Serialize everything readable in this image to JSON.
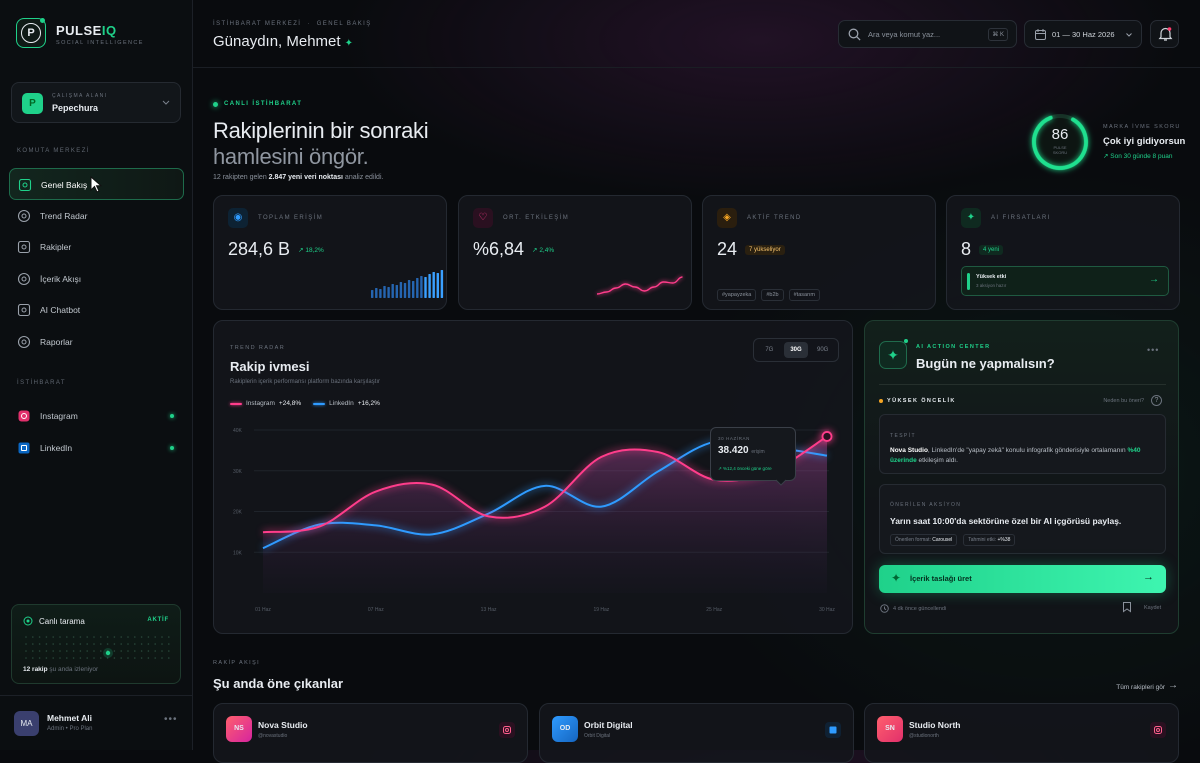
{
  "sidebar": {
    "brand": {
      "logo": "P",
      "name": "PULSE",
      "name_accent": "IQ",
      "tagline": "SOCIAL INTELLIGENCE"
    },
    "workspace": {
      "avatar": "P",
      "label": "ÇALIŞMA ALANI",
      "name": "Pepechura"
    },
    "sections": [
      {
        "title": "KOMUTA MERKEZİ",
        "items": [
          "Genel Bakış",
          "Trend Radar",
          "Rakipler",
          "İçerik Akışı",
          "AI Chatbot",
          "Raporlar"
        ]
      },
      {
        "title": "İSTİHBARAT",
        "items": [
          "Instagram",
          "LinkedIn"
        ]
      }
    ],
    "live_scan": {
      "title": "Canlı tarama",
      "status": "AKTİF",
      "count": "12 rakip",
      "caption": " şu anda izleniyor"
    },
    "user": {
      "initials": "MA",
      "name": "Mehmet Ali",
      "role": "Admin • Pro Plan"
    }
  },
  "header": {
    "breadcrumb": [
      "İSTİHBARAT MERKEZİ",
      "GENEL BAKIŞ"
    ],
    "greeting": "Günaydın, Mehmet",
    "search_placeholder": "Ara veya komut yaz...",
    "shortcut": "⌘ K",
    "date_range": "01 — 30 Haz 2026"
  },
  "hero": {
    "eyebrow": "CANLI İSTİHBARAT",
    "title_line1": "Rakiplerinin bir sonraki",
    "title_line2": "hamlesini öngör.",
    "summary": [
      "12 rakipten gelen ",
      "2.847 yeni veri noktası",
      " analiz edildi."
    ],
    "score": {
      "value": "86",
      "unit": "PULSE SKORU",
      "label": "MARKA İVME SKORU",
      "status": "Çok iyi gidiyorsun",
      "change": "Son 30 günde 8 puan"
    }
  },
  "kpis": [
    {
      "label": "TOPLAM ERİŞİM",
      "value": "284,6 B",
      "change": "18,2%",
      "spark": [
        8,
        10,
        9,
        12,
        11,
        14,
        13,
        16,
        15,
        18,
        17,
        20,
        22,
        21,
        24,
        26,
        25,
        28
      ]
    },
    {
      "label": "ORT. ETKİLEŞİM",
      "value": "%6,84",
      "change": "2,4%",
      "spark": [
        2,
        4,
        8,
        12,
        9,
        5,
        9,
        14,
        13,
        19
      ]
    },
    {
      "label": "AKTİF TREND",
      "value": "24",
      "badge": "7 yükseliyor",
      "tags": [
        "#yapayzeka",
        "#b2b",
        "#tasarım"
      ]
    },
    {
      "label": "AI FIRSATLARI",
      "value": "8",
      "badge": "4 yeni",
      "callout_title": "Yüksek etki",
      "callout_text": "3 aksiyon hazır"
    }
  ],
  "chart": {
    "type": "line",
    "eyebrow": "TREND RADAR",
    "title": "Rakip ivmesi",
    "subtitle": "Rakiplerin içerik performansı platform bazında karşılaştır",
    "tabs": [
      "7G",
      "30G",
      "90G"
    ],
    "active_tab": 1,
    "categories": [
      "01 Haz",
      null,
      "07 Haz",
      null,
      "13 Haz",
      null,
      "19 Haz",
      null,
      "25 Haz",
      null,
      "30 Haz"
    ],
    "series": [
      {
        "name": "Instagram",
        "change": "+24,8%",
        "color": "#ff3d8b",
        "values": [
          14900,
          16300,
          24900,
          26600,
          18800,
          21200,
          33400,
          34600,
          27800,
          29800,
          38420
        ]
      },
      {
        "name": "LinkedIn",
        "change": "+16,2%",
        "color": "#2f9bff",
        "values": [
          11000,
          16800,
          16600,
          14400,
          19500,
          26300,
          21200,
          29800,
          37100,
          35900,
          33700
        ]
      }
    ],
    "ylim": [
      0,
      40000
    ],
    "yticks": [
      {
        "value": 10000,
        "label": "10K"
      },
      {
        "value": 20000,
        "label": "20K"
      },
      {
        "value": 30000,
        "label": "30K"
      },
      {
        "value": 40000,
        "label": "40K"
      }
    ],
    "grid": true,
    "tooltip": {
      "date": "30 HAZİRAN",
      "value": "38.420",
      "unit": "erişim",
      "change": "%12,4 önceki güne göre"
    }
  },
  "ai": {
    "eyebrow": "AI ACTION CENTER",
    "title": "Bugün ne yapmalısın?",
    "priority": "YÜKSEK ÖNCELİK",
    "why": "Neden bu öneri?",
    "finding": {
      "label": "TESPİT",
      "parts": [
        "Nova Studio",
        ", LinkedIn'de \"yapay zekâ\" konulu infografik gönderisiyle ortalamanın ",
        "%40 üzerinde",
        " etkileşim aldı."
      ]
    },
    "action": {
      "label": "ÖNERİLEN AKSİYON",
      "text": "Yarın saat 10:00'da sektörüne özel bir AI içgörüsü paylaş.",
      "chips": [
        {
          "label": "Önerilen format: ",
          "value": "Carousel"
        },
        {
          "label": "Tahmini etki: ",
          "value": "+%38"
        }
      ]
    },
    "cta": "İçerik taslağı üret",
    "updated": "4 dk önce güncellendi",
    "save": "Kaydet"
  },
  "competitors": {
    "eyebrow": "RAKİP AKIŞI",
    "title": "Şu anda öne çıkanlar",
    "link": "Tüm rakipleri gör",
    "items": [
      {
        "initials": "NS",
        "name": "Nova Studio",
        "handle": "@novastudio",
        "platform": "instagram"
      },
      {
        "initials": "OD",
        "name": "Orbit Digital",
        "handle": "Orbit Digital",
        "platform": "linkedin"
      },
      {
        "initials": "SN",
        "name": "Studio North",
        "handle": "@studionorth",
        "platform": "instagram"
      }
    ]
  }
}
